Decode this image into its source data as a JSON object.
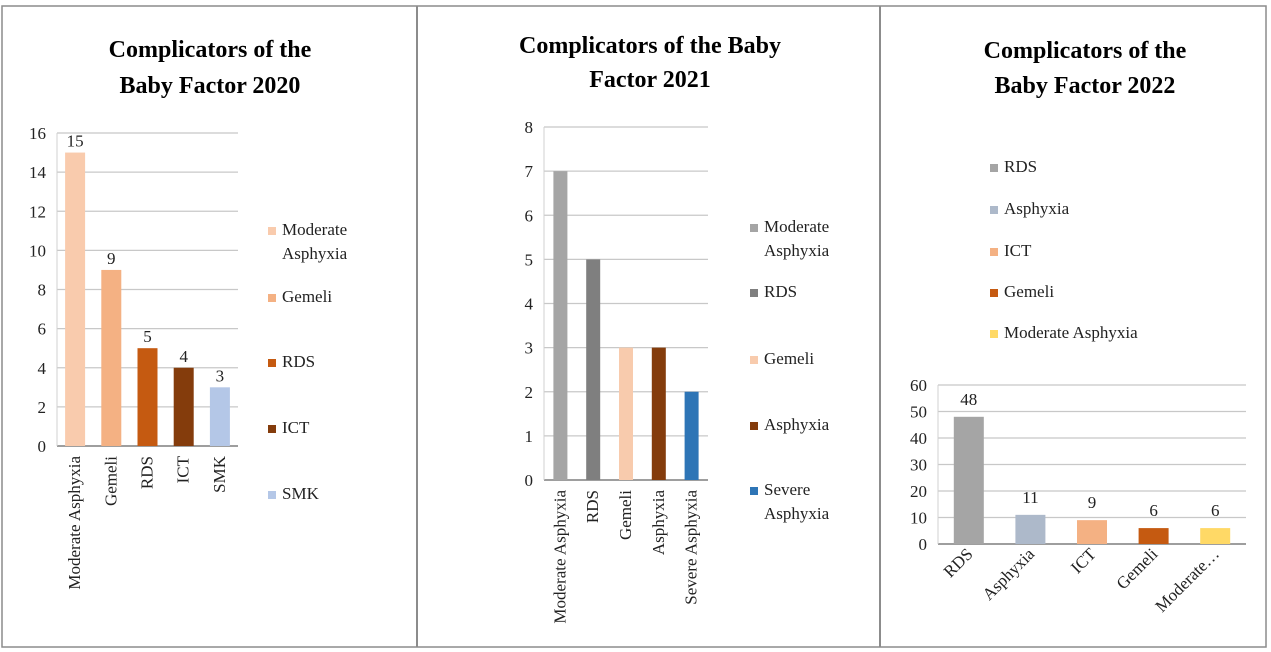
{
  "chart_data": [
    {
      "type": "bar",
      "title": "Complicators of the Baby Factor 2020",
      "title_lines": [
        "Complicators of the",
        "Baby Factor 2020"
      ],
      "categories": [
        "Moderate Asphyxia",
        "Gemeli",
        "RDS",
        "ICT",
        "SMK"
      ],
      "values": [
        15,
        9,
        5,
        4,
        3
      ],
      "data_labels": [
        "15",
        "9",
        "5",
        "4",
        "3"
      ],
      "colors": [
        "#f9cbad",
        "#f4b183",
        "#c55a11",
        "#843c0c",
        "#b4c7e7"
      ],
      "legend": [
        {
          "label": "Moderate Asphyxia",
          "lines": [
            "Moderate",
            "Asphyxia"
          ],
          "color": "#f9cbad"
        },
        {
          "label": "Gemeli",
          "lines": [
            "Gemeli"
          ],
          "color": "#f4b183"
        },
        {
          "label": "RDS",
          "lines": [
            "RDS"
          ],
          "color": "#c55a11"
        },
        {
          "label": "ICT",
          "lines": [
            "ICT"
          ],
          "color": "#843c0c"
        },
        {
          "label": "SMK",
          "lines": [
            "SMK"
          ],
          "color": "#b4c7e7"
        }
      ],
      "yticks": [
        "0",
        "2",
        "4",
        "6",
        "8",
        "10",
        "12",
        "14",
        "16"
      ],
      "ylim": [
        0,
        16
      ],
      "grid": true,
      "legend_position": "right"
    },
    {
      "type": "bar",
      "title": "Complicators of the Baby Factor 2021",
      "title_lines": [
        "Complicators of the Baby",
        "Factor 2021"
      ],
      "categories": [
        "Moderate Asphyxia",
        "RDS",
        "Gemeli",
        "Asphyxia",
        "Severe Asphyxia"
      ],
      "values": [
        7,
        5,
        3,
        3,
        2
      ],
      "colors": [
        "#a5a5a5",
        "#7f7f7f",
        "#f8cbad",
        "#843c0c",
        "#2e75b6"
      ],
      "legend": [
        {
          "label": "Moderate Asphyxia",
          "lines": [
            "Moderate",
            "Asphyxia"
          ],
          "color": "#a5a5a5"
        },
        {
          "label": "RDS",
          "lines": [
            "RDS"
          ],
          "color": "#7f7f7f"
        },
        {
          "label": "Gemeli",
          "lines": [
            "Gemeli"
          ],
          "color": "#f8cbad"
        },
        {
          "label": "Asphyxia",
          "lines": [
            "Asphyxia"
          ],
          "color": "#843c0c"
        },
        {
          "label": "Severe Asphyxia",
          "lines": [
            "Severe",
            "Asphyxia"
          ],
          "color": "#2e75b6"
        }
      ],
      "yticks": [
        "0",
        "1",
        "2",
        "3",
        "4",
        "5",
        "6",
        "7",
        "8"
      ],
      "ylim": [
        0,
        8
      ],
      "grid": true,
      "legend_position": "right"
    },
    {
      "type": "bar",
      "title": "Complicators of the Baby Factor 2022",
      "title_lines": [
        "Complicators of the",
        "Baby Factor 2022"
      ],
      "categories": [
        "RDS",
        "Asphyxia",
        "ICT",
        "Gemeli",
        "Moderate…"
      ],
      "values": [
        48,
        11,
        9,
        6,
        6
      ],
      "data_labels": [
        "48",
        "11",
        "9",
        "6",
        "6"
      ],
      "colors": [
        "#a5a5a5",
        "#adb9ca",
        "#f4b183",
        "#c55a11",
        "#ffd966"
      ],
      "legend": [
        {
          "label": "RDS",
          "lines": [
            "RDS"
          ],
          "color": "#a5a5a5"
        },
        {
          "label": "Asphyxia",
          "lines": [
            "Asphyxia"
          ],
          "color": "#adb9ca"
        },
        {
          "label": "ICT",
          "lines": [
            "ICT"
          ],
          "color": "#f4b183"
        },
        {
          "label": "Gemeli",
          "lines": [
            "Gemeli"
          ],
          "color": "#c55a11"
        },
        {
          "label": "Moderate Asphyxia",
          "lines": [
            "Moderate Asphyxia"
          ],
          "color": "#ffd966"
        }
      ],
      "yticks": [
        "0",
        "10",
        "20",
        "30",
        "40",
        "50",
        "60"
      ],
      "ylim": [
        0,
        60
      ],
      "grid": true,
      "legend_position": "top"
    }
  ]
}
